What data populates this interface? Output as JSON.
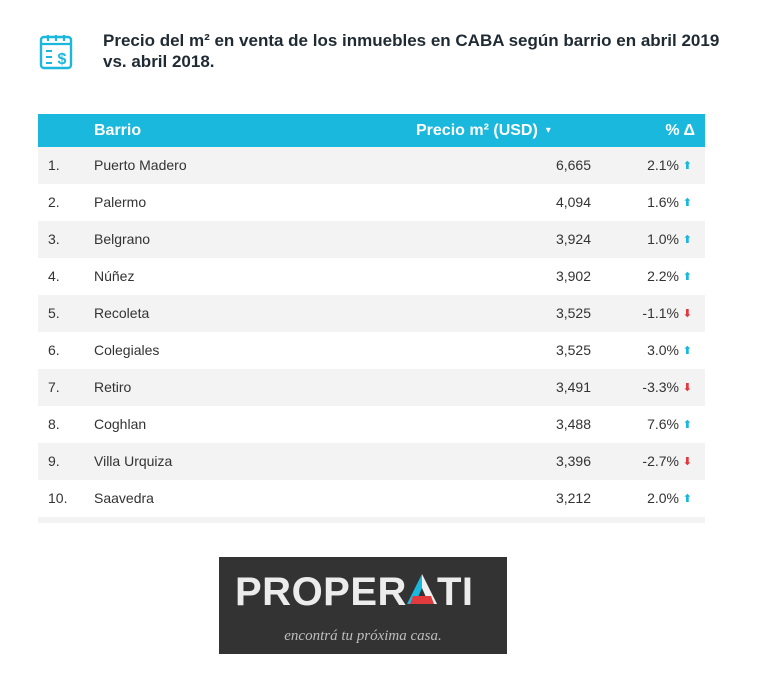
{
  "title": "Precio del m² en venta de los inmuebles en CABA según barrio en abril 2019 vs. abril 2018.",
  "header_icon": "price-document-icon",
  "chart_data": {
    "type": "table",
    "columns": [
      "",
      "Barrio",
      "Precio m² (USD)",
      "% Δ"
    ],
    "sort_indicator": "▾",
    "rows": [
      {
        "rank": "1.",
        "barrio": "Puerto Madero",
        "precio": "6,665",
        "pct": "2.1%",
        "dir": "up"
      },
      {
        "rank": "2.",
        "barrio": "Palermo",
        "precio": "4,094",
        "pct": "1.6%",
        "dir": "up"
      },
      {
        "rank": "3.",
        "barrio": "Belgrano",
        "precio": "3,924",
        "pct": "1.0%",
        "dir": "up"
      },
      {
        "rank": "4.",
        "barrio": "Núñez",
        "precio": "3,902",
        "pct": "2.2%",
        "dir": "up"
      },
      {
        "rank": "5.",
        "barrio": "Recoleta",
        "precio": "3,525",
        "pct": "-1.1%",
        "dir": "down"
      },
      {
        "rank": "6.",
        "barrio": "Colegiales",
        "precio": "3,525",
        "pct": "3.0%",
        "dir": "up"
      },
      {
        "rank": "7.",
        "barrio": "Retiro",
        "precio": "3,491",
        "pct": "-3.3%",
        "dir": "down"
      },
      {
        "rank": "8.",
        "barrio": "Coghlan",
        "precio": "3,488",
        "pct": "7.6%",
        "dir": "up"
      },
      {
        "rank": "9.",
        "barrio": "Villa Urquiza",
        "precio": "3,396",
        "pct": "-2.7%",
        "dir": "down"
      },
      {
        "rank": "10.",
        "barrio": "Saavedra",
        "precio": "3,212",
        "pct": "2.0%",
        "dir": "up"
      }
    ]
  },
  "colors": {
    "accent": "#1ab8dc",
    "up": "#1ab8dc",
    "down": "#e03a3e",
    "logo_bg": "#333333",
    "logo_red": "#e03a3e"
  },
  "logo": {
    "word_pre": "PROPER",
    "word_letter": "A",
    "word_post": "TI",
    "tagline": "encontrá tu próxima casa."
  }
}
